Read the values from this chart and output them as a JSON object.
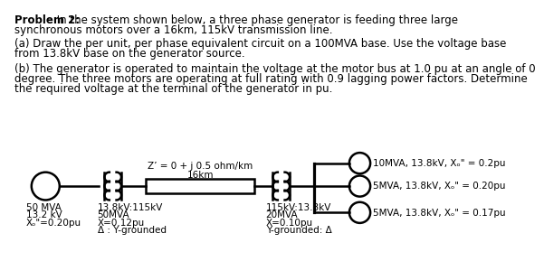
{
  "bg_color": "#ffffff",
  "text_color": "#000000",
  "font_size_body": 8.5,
  "font_size_bold": 8.5,
  "font_size_circuit": 7.5,
  "title_bold": "Problem 2:",
  "title_normal": " In the system shown below, a three phase generator is feeding three large",
  "title_line2": "synchronous motors over a 16km, 115kV transmission line.",
  "para_a_line1": "(a) Draw the per unit, per phase equivalent circuit on a 100MVA base. Use the voltage base",
  "para_a_line2": "from 13.8kV base on the generator source.",
  "para_b_line1": "(b) The generator is operated to maintain the voltage at the motor bus at 1.0 pu at an angle of 0",
  "para_b_line2": "degree. The three motors are operating at full rating with 0.9 lagging power factors. Determine",
  "para_b_line3": "the required voltage at the terminal of the generator in pu.",
  "gen_label_1": "50 MVA",
  "gen_label_2": "13.2 kV",
  "gen_label_3": "Xₒ\"=0.20pu",
  "t1_label_1": "13.8kV:115kV",
  "t1_label_2": "50MVA",
  "t1_label_3": "X=0.12pu",
  "t1_label_4": "Δ : Y-grounded",
  "line_label_1": "Z’ = 0 + j 0.5 ohm/km",
  "line_label_2": "16km",
  "t2_label_1": "115kV:13.8kV",
  "t2_label_2": "20MVA",
  "t2_label_3": "X=0.10pu",
  "t2_label_4": "Y-grounded: Δ",
  "m1_label": "10MVA, 13.8kV, Xₒ\" = 0.2pu",
  "m2_label": "5MVA, 13.8kV, Xₒ\" = 0.20pu",
  "m3_label": "5MVA, 13.8kV, Xₒ\" = 0.17pu"
}
